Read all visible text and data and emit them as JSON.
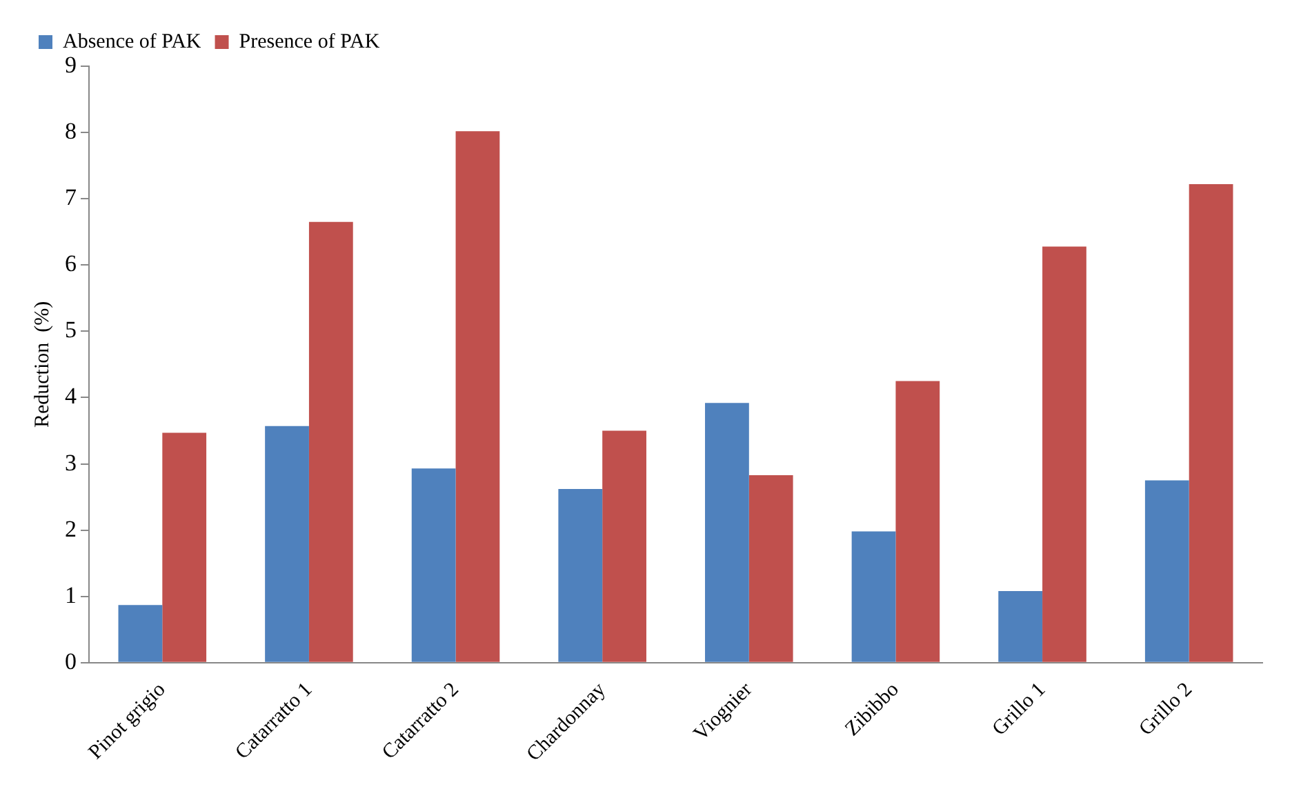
{
  "chart_data": {
    "type": "bar",
    "ylabel": "Reduction  (%)",
    "categories": [
      "Pinot grigio",
      "Catarratto 1",
      "Catarratto 2",
      "Chardonnay",
      "Viognier",
      "Zibibbo",
      "Grillo 1",
      "Grillo 2"
    ],
    "series": [
      {
        "name": "Absence of PAK",
        "color": "#4f81bd",
        "values": [
          0.87,
          3.57,
          2.93,
          2.62,
          3.92,
          1.98,
          1.08,
          2.75
        ]
      },
      {
        "name": "Presence of PAK",
        "color": "#c0504d",
        "values": [
          3.47,
          6.65,
          8.02,
          3.5,
          2.83,
          4.25,
          6.28,
          7.22
        ]
      }
    ],
    "ylim": [
      0,
      9
    ],
    "yticks": [
      0,
      1,
      2,
      3,
      4,
      5,
      6,
      7,
      8,
      9
    ],
    "grid": false,
    "legend": "top left"
  }
}
